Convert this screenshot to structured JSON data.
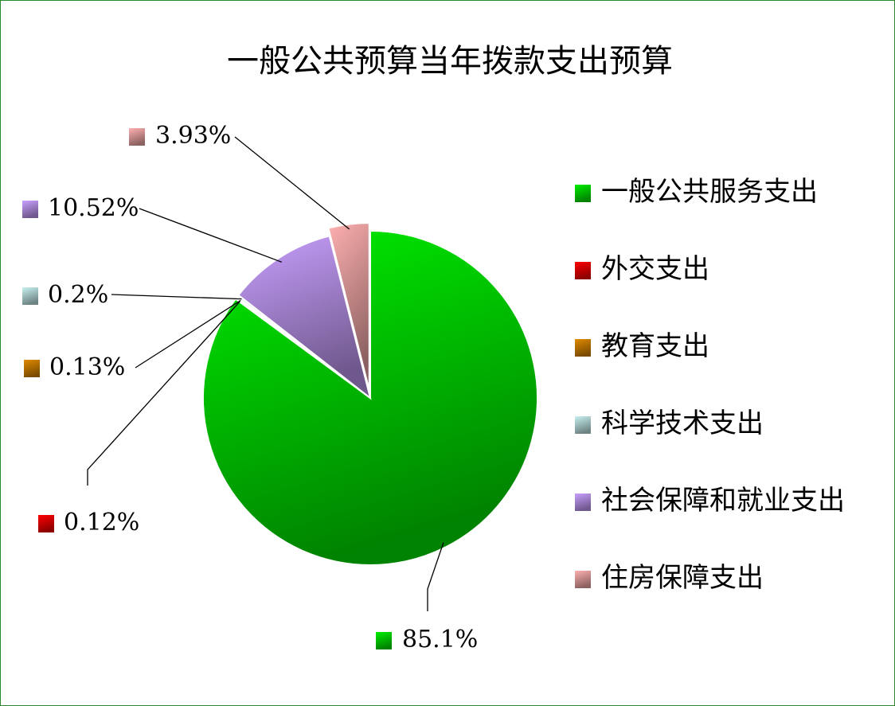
{
  "chart_data": {
    "type": "pie",
    "title": "一般公共预算当年拨款支出预算",
    "categories": [
      "一般公共服务支出",
      "外交支出",
      "教育支出",
      "科学技术支出",
      "社会保障和就业支出",
      "住房保障支出"
    ],
    "values": [
      85.1,
      0.12,
      0.13,
      0.2,
      10.52,
      3.93
    ],
    "value_labels": [
      "85.1%",
      "0.12%",
      "0.13%",
      "0.2%",
      "10.52%",
      "3.93%"
    ],
    "colors": [
      "#00ee00",
      "#ff0000",
      "#e08a00",
      "#c8f0f0",
      "#c9a0ff",
      "#ffb0b0"
    ],
    "legend": "right"
  }
}
